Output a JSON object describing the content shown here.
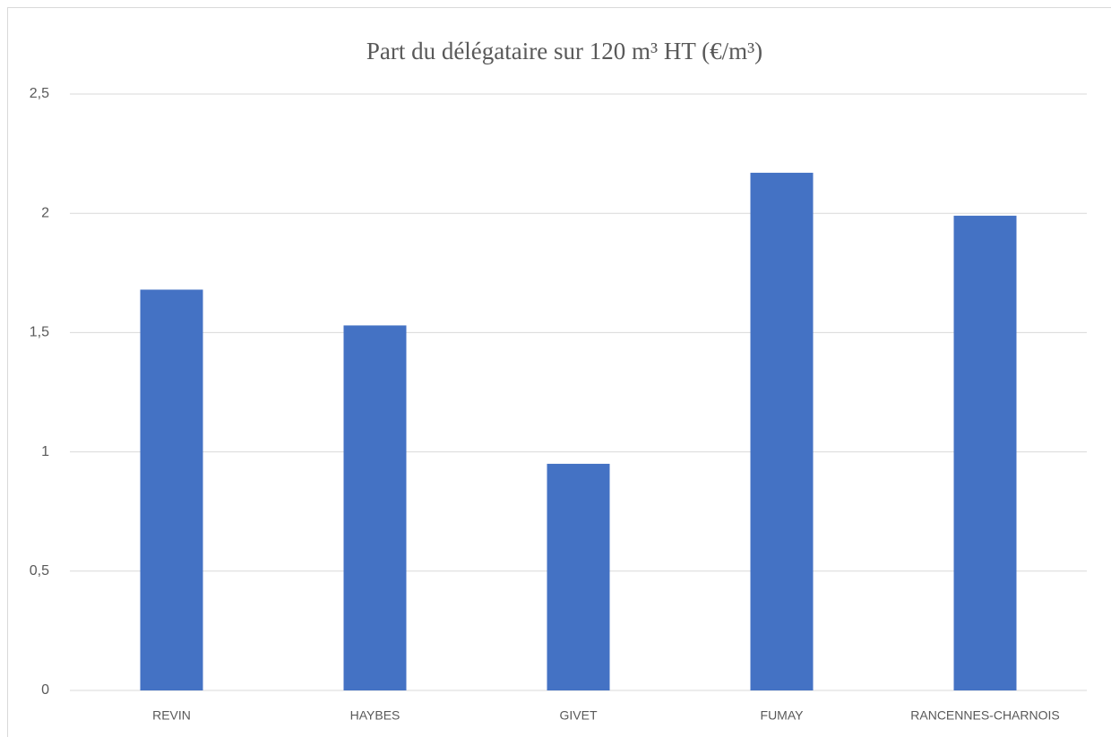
{
  "chart_data": {
    "type": "bar",
    "title": "Part du délégataire sur 120 m³ HT (€/m³)",
    "categories": [
      "REVIN",
      "HAYBES",
      "GIVET",
      "FUMAY",
      "RANCENNES-CHARNOIS"
    ],
    "values": [
      1.68,
      1.53,
      0.95,
      2.17,
      1.99
    ],
    "color": "#4472c4",
    "ylim": [
      0,
      2.5
    ],
    "yticks": [
      0,
      {
        "value": 0.5,
        "label": "0,5"
      },
      1,
      {
        "value": 1.5,
        "label": "1,5"
      },
      2,
      {
        "value": 2.5,
        "label": "2,5"
      }
    ],
    "grid": true
  }
}
